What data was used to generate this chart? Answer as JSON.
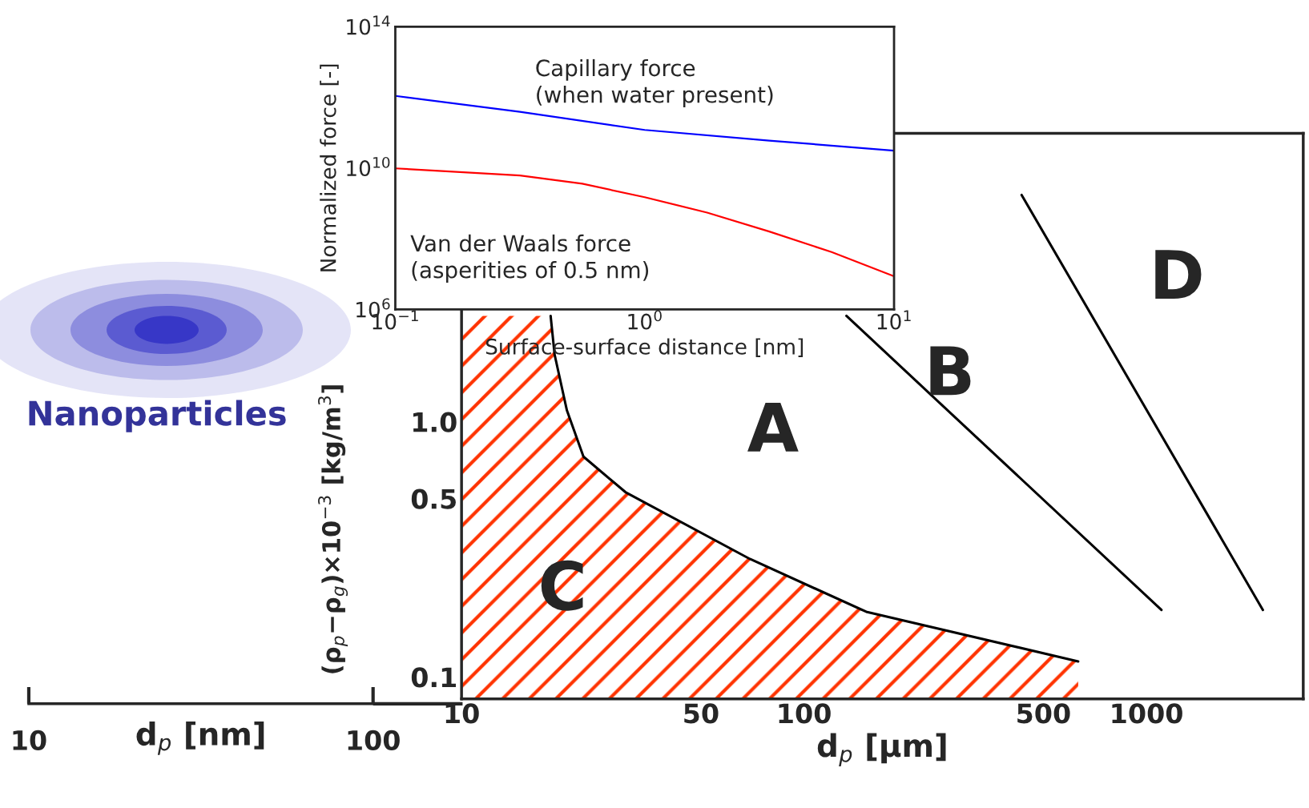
{
  "chart_data": [
    {
      "type": "line",
      "xlabel": "d$_{p}$ [μm]",
      "ylabel": "(ρ$_{p}$−ρ$_{g}$)×10$^{−3}$ [kg/m$^{3}$]",
      "log": "xy",
      "xlim": [
        10,
        2870
      ],
      "ylim": [
        0.082,
        13.5
      ],
      "xticks": [
        10,
        50,
        100,
        500,
        1000
      ],
      "yticks": [
        0.1,
        0.5,
        {
          "value": 1,
          "label": "1.0"
        }
      ],
      "grid": false,
      "legend": false,
      "series": [
        {
          "color": "#000000",
          "x": [
            18.2,
            18.7,
            20.3,
            22.7,
            30.1,
            69.5,
            152,
            632
          ],
          "values": [
            2.6,
            1.83,
            1.11,
            0.73,
            0.53,
            0.29,
            0.18,
            0.115
          ]
        },
        {
          "color": "#000000",
          "x": [
            133,
            1106
          ],
          "values": [
            2.6,
            0.183
          ]
        },
        {
          "color": "#000000",
          "x": [
            432,
            2188
          ],
          "values": [
            7.74,
            0.183
          ]
        }
      ],
      "annotations": [
        "A",
        "B",
        "C",
        "D"
      ]
    },
    {
      "type": "other",
      "xlabel": "d$_{p}$ [nm]",
      "annotations": [
        "Nanoparticles",
        "10",
        "100"
      ]
    },
    {
      "type": "line",
      "xlabel": "Surface-surface distance [nm]",
      "ylabel": "Normalized force [-]",
      "log": "xy",
      "xlim": [
        0.1,
        10
      ],
      "ylim": [
        1000000.0,
        100000000000000.0
      ],
      "xticks": [
        {
          "value": 0.1,
          "label": "10$^{−1}$"
        },
        {
          "value": 1,
          "label": "10$^{0}$"
        },
        {
          "value": 10,
          "label": "10$^{1}$"
        }
      ],
      "yticks": [
        {
          "value": 1000000.0,
          "label": "10$^{6}$"
        },
        {
          "value": 10000000000.0,
          "label": "10$^{10}$"
        },
        {
          "value": 100000000000000.0,
          "label": "10$^{14}$"
        }
      ],
      "grid": false,
      "legend": false,
      "series": [
        {
          "color": "#0000ff",
          "x": [
            0.1,
            0.316,
            1,
            3.16,
            10
          ],
          "values": [
            1100000000000.0,
            390000000000.0,
            120000000000.0,
            60000000000.0,
            31000000000.0
          ]
        },
        {
          "color": "#ff0000",
          "x": [
            0.1,
            0.316,
            0.562,
            1,
            1.78,
            3.16,
            5.62,
            10
          ],
          "values": [
            9800000000.0,
            6200000000.0,
            3600000000.0,
            1500000000.0,
            550000000.0,
            160000000.0,
            42000000.0,
            8700000.0
          ]
        }
      ],
      "annotations": [
        "Capillary force\n(when water present)",
        "Van der Waals force\n(asperities of 0.5 nm)"
      ]
    }
  ]
}
